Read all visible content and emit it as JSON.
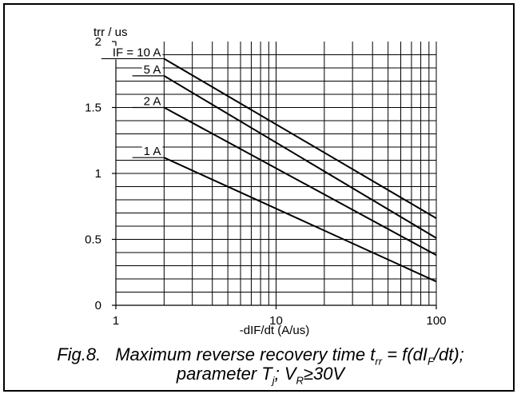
{
  "chart_data": {
    "type": "line",
    "title": "",
    "ylabel": "trr / us",
    "xlabel": "-dIF/dt (A/us)",
    "x_scale": "log",
    "xlim": [
      1,
      100
    ],
    "ylim": [
      0,
      2
    ],
    "x_ticks": [
      "1",
      "10",
      "100"
    ],
    "y_ticks": [
      "0",
      "0.5",
      "1",
      "1.5",
      "2"
    ],
    "grid": true,
    "series": [
      {
        "name": "IF = 10 A",
        "x": [
          2,
          100
        ],
        "y": [
          1.87,
          0.66
        ]
      },
      {
        "name": "5 A",
        "x": [
          2,
          100
        ],
        "y": [
          1.74,
          0.51
        ]
      },
      {
        "name": "2 A",
        "x": [
          2,
          100
        ],
        "y": [
          1.5,
          0.38
        ]
      },
      {
        "name": "1 A",
        "x": [
          2,
          100
        ],
        "y": [
          1.12,
          0.18
        ]
      }
    ]
  },
  "caption": {
    "fig_label": "Fig.8.",
    "line1_text": "Maximum reverse recovery time t",
    "line1_sub": "rr",
    "line1_mid": " = f(dI",
    "line1_sub2": "F",
    "line1_end": "/dt);",
    "line2_text": "parameter T",
    "line2_sub": "j",
    "line2_mid": "; V",
    "line2_sub2": "R",
    "line2_end": "≥30V"
  }
}
